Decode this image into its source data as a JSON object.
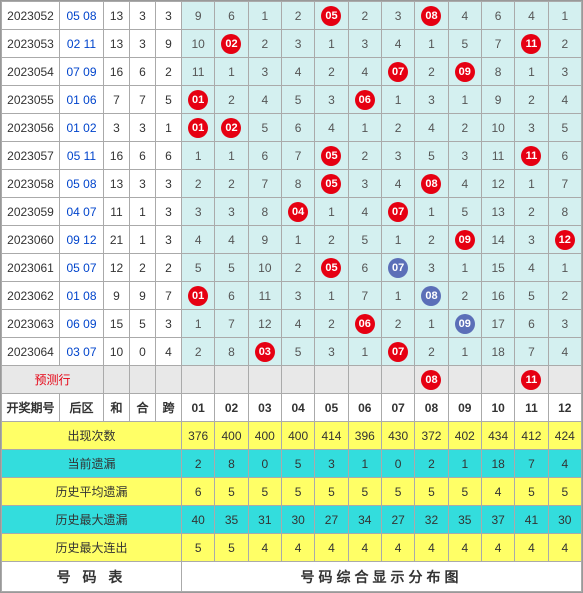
{
  "colors": {
    "ball_red": "#e60012",
    "ball_blue": "#5b6fb8",
    "cell_bg": "#d4f0f0",
    "stat_yellow": "#ffff66",
    "stat_cyan": "#33dddd",
    "predict_gray": "#e8e8e8",
    "hou_text": "#0044cc"
  },
  "num_headers": [
    "01",
    "02",
    "03",
    "04",
    "05",
    "06",
    "07",
    "08",
    "09",
    "10",
    "11",
    "12"
  ],
  "rows": [
    {
      "period": "2023052",
      "hou": "05 08",
      "he": "13",
      "heh": "3",
      "kua": "3",
      "cells": [
        "9",
        "6",
        "1",
        "2",
        "05",
        "2",
        "3",
        "08",
        "4",
        "6",
        "4",
        "1"
      ],
      "hits": [
        5,
        8
      ]
    },
    {
      "period": "2023053",
      "hou": "02 11",
      "he": "13",
      "heh": "3",
      "kua": "9",
      "cells": [
        "10",
        "02",
        "2",
        "3",
        "1",
        "3",
        "4",
        "1",
        "5",
        "7",
        "11",
        "2"
      ],
      "hits": [
        2,
        11
      ]
    },
    {
      "period": "2023054",
      "hou": "07 09",
      "he": "16",
      "heh": "6",
      "kua": "2",
      "cells": [
        "11",
        "1",
        "3",
        "4",
        "2",
        "4",
        "07",
        "2",
        "09",
        "8",
        "1",
        "3"
      ],
      "hits": [
        7,
        9
      ]
    },
    {
      "period": "2023055",
      "hou": "01 06",
      "he": "7",
      "heh": "7",
      "kua": "5",
      "cells": [
        "01",
        "2",
        "4",
        "5",
        "3",
        "06",
        "1",
        "3",
        "1",
        "9",
        "2",
        "4"
      ],
      "hits": [
        1,
        6
      ]
    },
    {
      "period": "2023056",
      "hou": "01 02",
      "he": "3",
      "heh": "3",
      "kua": "1",
      "cells": [
        "01",
        "02",
        "5",
        "6",
        "4",
        "1",
        "2",
        "4",
        "2",
        "10",
        "3",
        "5"
      ],
      "hits": [
        1,
        2
      ]
    },
    {
      "period": "2023057",
      "hou": "05 11",
      "he": "16",
      "heh": "6",
      "kua": "6",
      "cells": [
        "1",
        "1",
        "6",
        "7",
        "05",
        "2",
        "3",
        "5",
        "3",
        "11",
        "11",
        "6"
      ],
      "hits": [
        5,
        11
      ]
    },
    {
      "period": "2023058",
      "hou": "05 08",
      "he": "13",
      "heh": "3",
      "kua": "3",
      "cells": [
        "2",
        "2",
        "7",
        "8",
        "05",
        "3",
        "4",
        "08",
        "4",
        "12",
        "1",
        "7"
      ],
      "hits": [
        5,
        8
      ]
    },
    {
      "period": "2023059",
      "hou": "04 07",
      "he": "11",
      "heh": "1",
      "kua": "3",
      "cells": [
        "3",
        "3",
        "8",
        "04",
        "1",
        "4",
        "07",
        "1",
        "5",
        "13",
        "2",
        "8"
      ],
      "hits": [
        4,
        7
      ]
    },
    {
      "period": "2023060",
      "hou": "09 12",
      "he": "21",
      "heh": "1",
      "kua": "3",
      "cells": [
        "4",
        "4",
        "9",
        "1",
        "2",
        "5",
        "1",
        "2",
        "09",
        "14",
        "3",
        "12"
      ],
      "hits": [
        9,
        12
      ]
    },
    {
      "period": "2023061",
      "hou": "05 07",
      "he": "12",
      "heh": "2",
      "kua": "2",
      "cells": [
        "5",
        "5",
        "10",
        "2",
        "05",
        "6",
        "07",
        "3",
        "1",
        "15",
        "4",
        "1"
      ],
      "hits": [
        5
      ],
      "blue": [
        7
      ]
    },
    {
      "period": "2023062",
      "hou": "01 08",
      "he": "9",
      "heh": "9",
      "kua": "7",
      "cells": [
        "01",
        "6",
        "11",
        "3",
        "1",
        "7",
        "1",
        "08",
        "2",
        "16",
        "5",
        "2"
      ],
      "hits": [
        1
      ],
      "blue": [
        8
      ]
    },
    {
      "period": "2023063",
      "hou": "06 09",
      "he": "15",
      "heh": "5",
      "kua": "3",
      "cells": [
        "1",
        "7",
        "12",
        "4",
        "2",
        "06",
        "2",
        "1",
        "09",
        "17",
        "6",
        "3"
      ],
      "hits": [
        6
      ],
      "blue": [
        9
      ]
    },
    {
      "period": "2023064",
      "hou": "03 07",
      "he": "10",
      "heh": "0",
      "kua": "4",
      "cells": [
        "2",
        "8",
        "03",
        "5",
        "3",
        "1",
        "07",
        "2",
        "1",
        "18",
        "7",
        "4"
      ],
      "hits": [
        3,
        7
      ]
    }
  ],
  "predict": {
    "label": "预测行",
    "cells": [
      "",
      "",
      "",
      "",
      "",
      "",
      "",
      "08",
      "",
      "",
      "11",
      ""
    ],
    "hits": [
      8,
      11
    ]
  },
  "headers": {
    "period": "开奖期号",
    "hou": "后区",
    "he": "和",
    "heh": "合",
    "kua": "跨"
  },
  "stats": [
    {
      "label": "出现次数",
      "cls": "yellow",
      "vals": [
        "376",
        "400",
        "400",
        "400",
        "414",
        "396",
        "430",
        "372",
        "402",
        "434",
        "412",
        "424"
      ]
    },
    {
      "label": "当前遗漏",
      "cls": "cyan",
      "vals": [
        "2",
        "8",
        "0",
        "5",
        "3",
        "1",
        "0",
        "2",
        "1",
        "18",
        "7",
        "4"
      ]
    },
    {
      "label": "历史平均遗漏",
      "cls": "yellow",
      "vals": [
        "6",
        "5",
        "5",
        "5",
        "5",
        "5",
        "5",
        "5",
        "5",
        "4",
        "5",
        "5"
      ]
    },
    {
      "label": "历史最大遗漏",
      "cls": "cyan",
      "vals": [
        "40",
        "35",
        "31",
        "30",
        "27",
        "34",
        "27",
        "32",
        "35",
        "37",
        "41",
        "30"
      ]
    },
    {
      "label": "历史最大连出",
      "cls": "yellow",
      "vals": [
        "5",
        "5",
        "4",
        "4",
        "4",
        "4",
        "4",
        "4",
        "4",
        "4",
        "4",
        "4"
      ]
    }
  ],
  "footer": {
    "left": "号 码 表",
    "right": "号码综合显示分布图"
  }
}
